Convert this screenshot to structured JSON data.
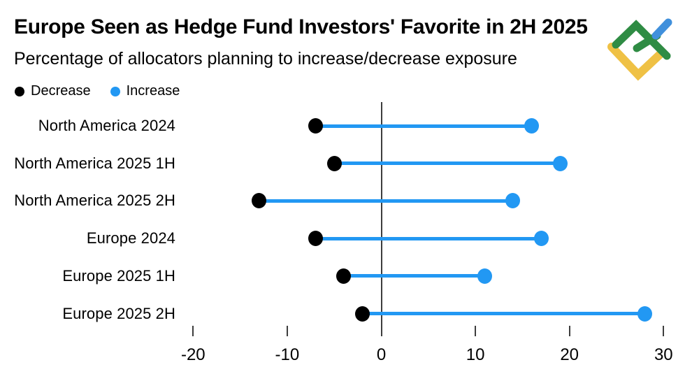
{
  "header": {
    "title": "Europe Seen as Hedge Fund Investors' Favorite in 2H 2025",
    "subtitle": "Percentage of allocators planning to increase/decrease exposure"
  },
  "legend": {
    "items": [
      {
        "label": "Decrease",
        "color": "#000000"
      },
      {
        "label": "Increase",
        "color": "#2298f3"
      }
    ]
  },
  "logo": {
    "name": "litefinance-logo",
    "colors": {
      "green": "#2f8c44",
      "yellow": "#efc145",
      "blue": "#4090dc"
    }
  },
  "chart_data": {
    "type": "dumbbell",
    "orientation": "horizontal",
    "categories": [
      "North America 2024",
      "North America 2025 1H",
      "North America 2025 2H",
      "Europe 2024",
      "Europe 2025 1H",
      "Europe 2025 2H"
    ],
    "series": [
      {
        "name": "Decrease",
        "color": "#000000",
        "values": [
          -7,
          -5,
          -13,
          -7,
          -4,
          -2
        ]
      },
      {
        "name": "Increase",
        "color": "#2298f3",
        "values": [
          16,
          19,
          14,
          17,
          11,
          28
        ]
      }
    ],
    "connector_color": "#2298f3",
    "x_ticks": [
      -20,
      -10,
      0,
      10,
      20,
      30
    ],
    "xlim": [
      -22,
      31
    ],
    "unit": "percent",
    "zero_line": true,
    "grid": false,
    "legend_position": "top-left"
  }
}
